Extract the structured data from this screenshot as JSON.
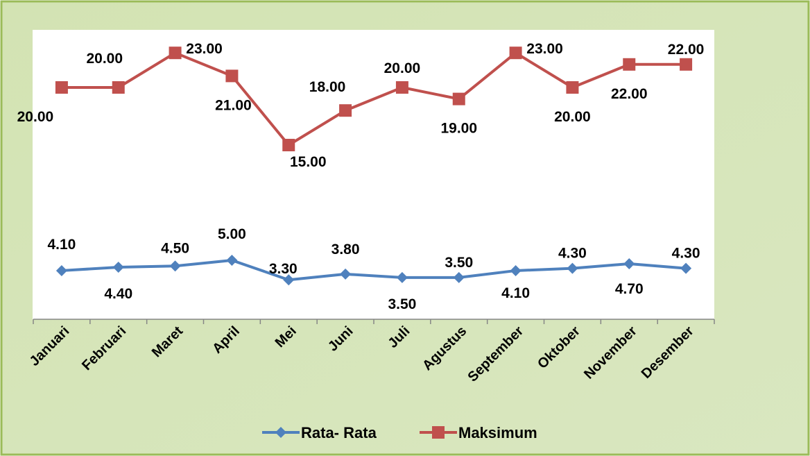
{
  "chart_data": {
    "type": "line",
    "categories": [
      "Januari",
      "Februari",
      "Maret",
      "April",
      "Mei",
      "Juni",
      "Juli",
      "Agustus",
      "September",
      "Oktober",
      "November",
      "Desember"
    ],
    "ylim": [
      0,
      25
    ],
    "series": [
      {
        "name": "Rata- Rata",
        "color": "#4f81bd",
        "marker": "diamond",
        "values": [
          4.1,
          4.4,
          4.5,
          5.0,
          3.3,
          3.8,
          3.5,
          3.5,
          4.1,
          4.3,
          4.7,
          4.3
        ],
        "value_labels": [
          "4.10",
          "4.40",
          "4.50",
          "5.00",
          "3.30",
          "3.80",
          "3.50",
          "3.50",
          "4.10",
          "4.30",
          "4.70",
          "4.30"
        ]
      },
      {
        "name": "Maksimum",
        "color": "#c0504d",
        "marker": "square",
        "values": [
          20,
          20,
          23,
          21,
          15,
          18,
          20,
          19,
          23,
          20,
          22,
          22
        ],
        "value_labels": [
          "20.00",
          "20.00",
          "23.00",
          "21.00",
          "15.00",
          "18.00",
          "20.00",
          "19.00",
          "23.00",
          "20.00",
          "22.00",
          "22.00"
        ]
      }
    ],
    "legend": "bottom"
  }
}
